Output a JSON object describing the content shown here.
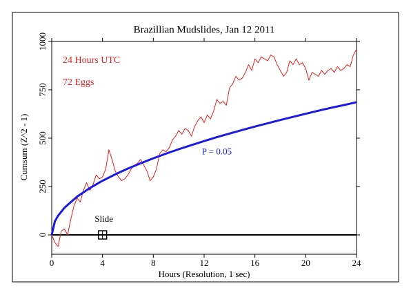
{
  "chart_data": {
    "type": "line",
    "title": "Brazillian Mudslides, Jan 12 2011",
    "xlabel": "Hours (Resolution, 1 sec)",
    "ylabel": "Cumsum (Z^2 - 1)",
    "notes": [
      {
        "text": "24 Hours UTC",
        "color": "#e8201c"
      },
      {
        "text": "72 Eggs",
        "color": "#e8201c"
      }
    ],
    "xlim": [
      0,
      24
    ],
    "xticks": [
      0,
      4,
      8,
      12,
      16,
      20,
      24
    ],
    "ylim": [
      -100,
      1000
    ],
    "yticks": [
      0,
      250,
      500,
      750,
      1000
    ],
    "annotations": [
      {
        "text": "Slide",
        "x": 4,
        "y": 0
      }
    ],
    "series": [
      {
        "color": "#e8201c",
        "width": 1,
        "x": [
          0,
          0.25,
          0.5,
          0.75,
          1,
          1.25,
          1.5,
          1.75,
          2,
          2.25,
          2.5,
          2.75,
          3,
          3.25,
          3.5,
          3.75,
          4,
          4.25,
          4.5,
          4.75,
          5,
          5.25,
          5.5,
          5.75,
          6,
          6.25,
          6.5,
          6.75,
          7,
          7.25,
          7.5,
          7.75,
          8,
          8.25,
          8.5,
          8.75,
          9,
          9.25,
          9.5,
          9.75,
          10,
          10.25,
          10.5,
          10.75,
          11,
          11.25,
          11.5,
          11.75,
          12,
          12.25,
          12.5,
          12.75,
          13,
          13.25,
          13.5,
          13.75,
          14,
          14.25,
          14.5,
          14.75,
          15,
          15.25,
          15.5,
          15.75,
          16,
          16.25,
          16.5,
          16.75,
          17,
          17.25,
          17.5,
          17.75,
          18,
          18.25,
          18.5,
          18.75,
          19,
          19.25,
          19.5,
          19.75,
          20,
          20.25,
          20.5,
          20.75,
          21,
          21.25,
          21.5,
          21.75,
          22,
          22.25,
          22.5,
          22.75,
          23,
          23.25,
          23.5,
          23.75,
          24
        ],
        "values": [
          0,
          -40,
          -60,
          20,
          30,
          0,
          80,
          150,
          190,
          170,
          230,
          270,
          230,
          260,
          310,
          290,
          300,
          340,
          440,
          390,
          330,
          300,
          280,
          290,
          310,
          340,
          360,
          370,
          390,
          360,
          330,
          280,
          300,
          340,
          420,
          440,
          430,
          450,
          490,
          510,
          540,
          520,
          550,
          540,
          510,
          560,
          590,
          610,
          580,
          620,
          600,
          640,
          700,
          680,
          690,
          670,
          760,
          780,
          820,
          800,
          810,
          840,
          880,
          850,
          910,
          890,
          920,
          910,
          900,
          930,
          920,
          880,
          850,
          820,
          840,
          900,
          880,
          910,
          880,
          890,
          860,
          800,
          840,
          830,
          820,
          850,
          830,
          850,
          860,
          840,
          870,
          850,
          860,
          880,
          870,
          930,
          960
        ]
      },
      {
        "name": "P = 0.05",
        "color": "#1a1ae6",
        "width": 3,
        "x": [
          0,
          0.25,
          0.5,
          1,
          2,
          3,
          4,
          5,
          6,
          7,
          8,
          9,
          10,
          11,
          12,
          13,
          14,
          15,
          16,
          17,
          18,
          19,
          20,
          21,
          22,
          23,
          24
        ],
        "values": [
          0,
          70,
          99,
          140,
          198,
          242,
          280,
          313,
          343,
          370,
          396,
          420,
          443,
          464,
          485,
          505,
          524,
          542,
          560,
          577,
          594,
          610,
          626,
          642,
          657,
          671,
          686
        ]
      }
    ]
  }
}
